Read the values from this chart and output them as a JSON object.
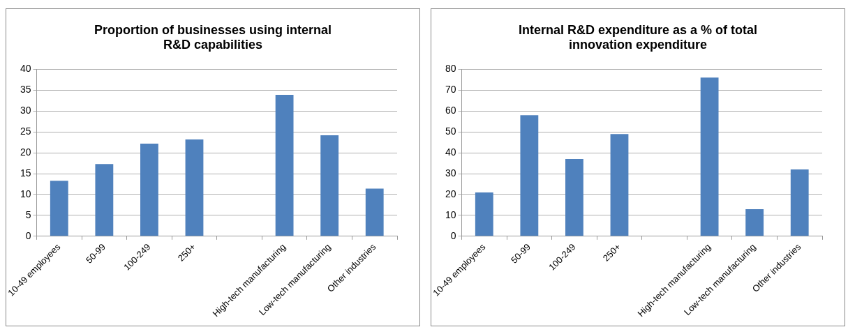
{
  "chart_data": [
    {
      "type": "bar",
      "title": "Proportion of businesses using internal R&D capabilities",
      "categories": [
        "10-49 employees",
        "50-99",
        "100-249",
        "250+",
        null,
        "High-tech manufacturing",
        "Low-tech manufacturing",
        "Other industries"
      ],
      "values": [
        13.3,
        17.3,
        22.2,
        23.2,
        null,
        33.9,
        24.2,
        11.4
      ],
      "color": "#4f81bd",
      "ylim": [
        0,
        40
      ],
      "yticks": [
        0,
        5,
        10,
        15,
        20,
        25,
        30,
        35,
        40
      ],
      "grid": "y",
      "legend": false
    },
    {
      "type": "bar",
      "title": "Internal R&D expenditure as a % of total innovation expenditure",
      "categories": [
        "10-49 employees",
        "50-99",
        "100-249",
        "250+",
        null,
        "High-tech manufacturing",
        "Low-tech manufacturing",
        "Other industries"
      ],
      "values": [
        21,
        58,
        37,
        49,
        null,
        76,
        13,
        32
      ],
      "color": "#4f81bd",
      "ylim": [
        0,
        80
      ],
      "yticks": [
        0,
        10,
        20,
        30,
        40,
        50,
        60,
        70,
        80
      ],
      "grid": "y",
      "legend": false
    }
  ]
}
